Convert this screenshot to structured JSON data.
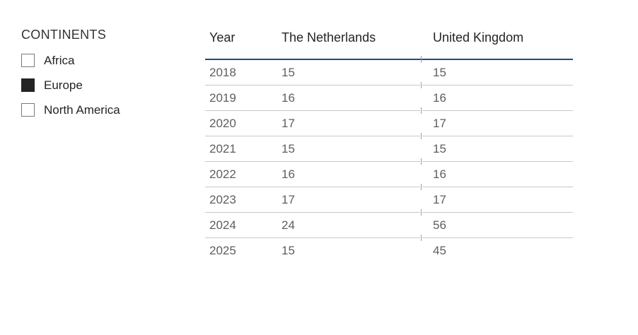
{
  "slicer": {
    "title": "CONTINENTS",
    "items": [
      {
        "label": "Africa",
        "checked": false
      },
      {
        "label": "Europe",
        "checked": true
      },
      {
        "label": "North America",
        "checked": false
      }
    ]
  },
  "table": {
    "columns": [
      "Year",
      "The Netherlands",
      "United Kingdom"
    ],
    "rows": [
      [
        "2018",
        "15",
        "15"
      ],
      [
        "2019",
        "16",
        "16"
      ],
      [
        "2020",
        "17",
        "17"
      ],
      [
        "2021",
        "15",
        "15"
      ],
      [
        "2022",
        "16",
        "16"
      ],
      [
        "2023",
        "17",
        "17"
      ],
      [
        "2024",
        "24",
        "56"
      ],
      [
        "2025",
        "15",
        "45"
      ]
    ]
  },
  "colors": {
    "header_underline": "#1c4e80",
    "gridline": "#c8c8c8",
    "boundary_tick": "#9e9e9e",
    "header_text": "#252423",
    "body_text": "#605e5c",
    "slicer_title_text": "#333333",
    "checkbox_checked_fill": "#252423",
    "checkbox_border": "#7a7a7a",
    "background": "#ffffff"
  },
  "chart_data": {
    "type": "table",
    "title": "",
    "row_field": "Year",
    "categories": [
      "2018",
      "2019",
      "2020",
      "2021",
      "2022",
      "2023",
      "2024",
      "2025"
    ],
    "series": [
      {
        "name": "The Netherlands",
        "values": [
          15,
          16,
          17,
          15,
          16,
          17,
          24,
          15
        ]
      },
      {
        "name": "United Kingdom",
        "values": [
          15,
          16,
          17,
          15,
          16,
          17,
          56,
          45
        ]
      }
    ],
    "legend_position": "none",
    "grid": "horizontal-lines",
    "filter_slicer": {
      "title": "CONTINENTS",
      "options": [
        "Africa",
        "Europe",
        "North America"
      ],
      "selected": [
        "Europe"
      ]
    }
  }
}
